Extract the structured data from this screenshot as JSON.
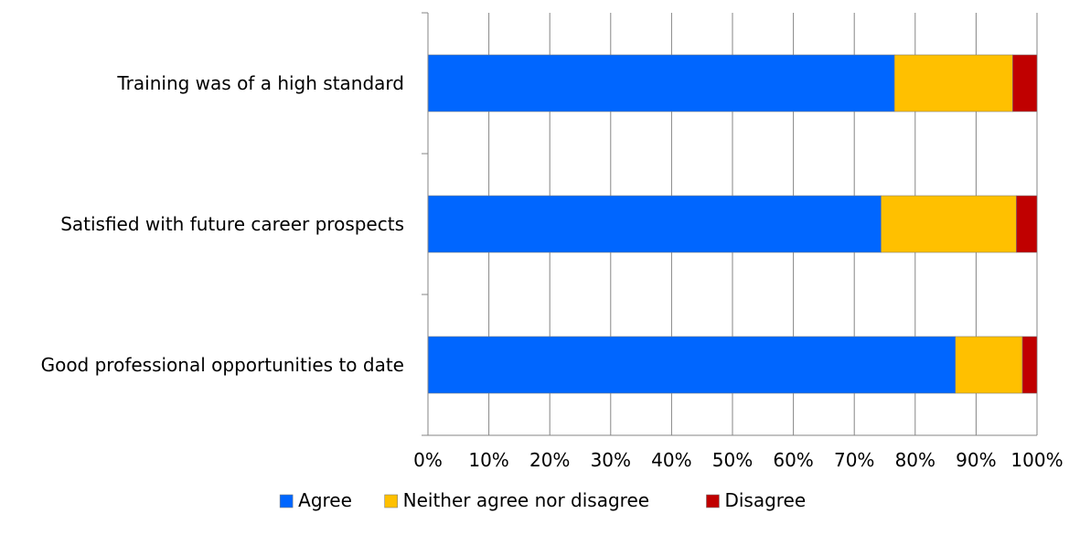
{
  "chart_data": {
    "type": "bar",
    "orientation": "horizontal",
    "stacked": "percent",
    "categories": [
      "Training was of a high standard",
      "Satisfied with future career prospects",
      "Good professional opportunities to date"
    ],
    "series": [
      {
        "name": "Agree",
        "color": "#0066FF",
        "values": [
          76.6,
          74.4,
          86.6
        ]
      },
      {
        "name": "Neither agree nor disagree",
        "color": "#FFC000",
        "values": [
          19.4,
          22.2,
          11.0
        ]
      },
      {
        "name": "Disagree",
        "color": "#C00000",
        "values": [
          4.0,
          3.4,
          2.4
        ]
      }
    ],
    "x_ticks": [
      "0%",
      "10%",
      "20%",
      "30%",
      "40%",
      "50%",
      "60%",
      "70%",
      "80%",
      "90%",
      "100%"
    ],
    "xlim": [
      0,
      100
    ],
    "grid": "vertical",
    "legend_position": "bottom"
  }
}
